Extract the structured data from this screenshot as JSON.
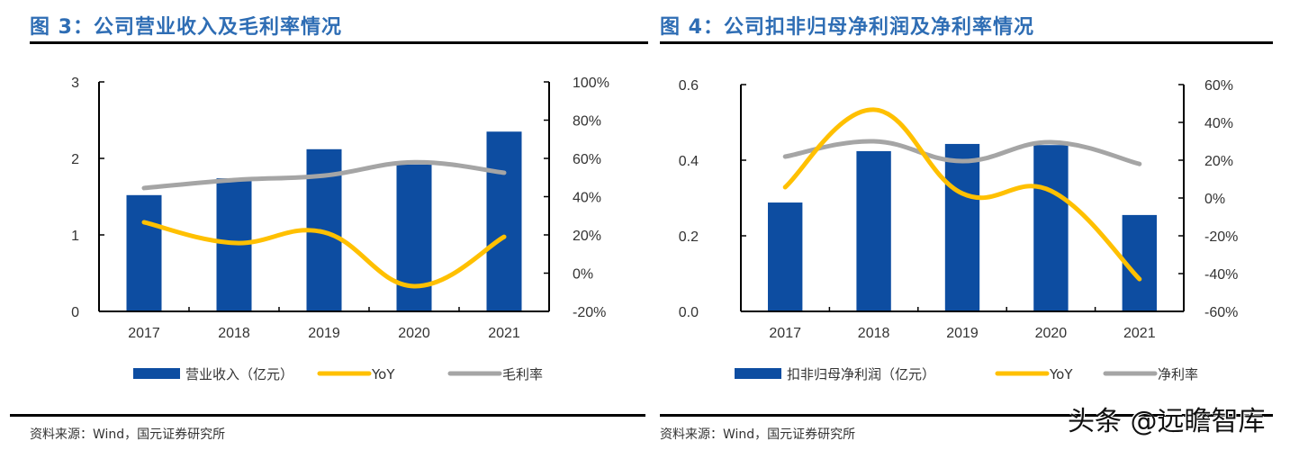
{
  "charts_meta": [
    {
      "title": "图 3：公司营业收入及毛利率情况",
      "source": "资料来源：Wind，国元证券研究所"
    },
    {
      "title": "图 4：公司扣非归母净利润及净利率情况",
      "source": "资料来源：Wind，国元证券研究所"
    }
  ],
  "watermark": "头条 @远瞻智库",
  "colors": {
    "bar": "#0D4DA1",
    "yoy": "#FFC000",
    "margin": "#A5A5A5",
    "title": "#2E6DB4"
  },
  "chart_data": [
    {
      "type": "bar",
      "title": "图 3：公司营业收入及毛利率情况",
      "categories": [
        "2017",
        "2018",
        "2019",
        "2020",
        "2021"
      ],
      "series": [
        {
          "name": "营业收入（亿元）",
          "type": "bar",
          "axis": "left",
          "values": [
            1.52,
            1.74,
            2.12,
            1.92,
            2.35
          ]
        },
        {
          "name": "YoY",
          "type": "line",
          "axis": "right",
          "values": [
            26.6,
            15.8,
            21.4,
            -6.8,
            19.0
          ]
        },
        {
          "name": "毛利率",
          "type": "line",
          "axis": "right",
          "values": [
            44.5,
            48.7,
            51.0,
            58.0,
            52.5
          ]
        }
      ],
      "left_axis": {
        "ylim": [
          0,
          3
        ],
        "ticks": [
          0,
          1,
          2,
          3
        ],
        "tick_labels": [
          "0",
          "1",
          "2",
          "3"
        ]
      },
      "right_axis": {
        "ylim": [
          -20,
          100
        ],
        "ticks": [
          -20,
          0,
          20,
          40,
          60,
          80,
          100
        ],
        "tick_labels": [
          "-20%",
          "0%",
          "20%",
          "40%",
          "60%",
          "80%",
          "100%"
        ]
      },
      "legend": [
        "营业收入（亿元）",
        "YoY",
        "毛利率"
      ],
      "legend_position": "bottom",
      "grid": false,
      "xlabel": "",
      "ylabel": ""
    },
    {
      "type": "bar",
      "title": "图 4：公司扣非归母净利润及净利率情况",
      "categories": [
        "2017",
        "2018",
        "2019",
        "2020",
        "2021"
      ],
      "series": [
        {
          "name": "扣非归母净利润（亿元）",
          "type": "bar",
          "axis": "left",
          "values": [
            0.288,
            0.424,
            0.443,
            0.44,
            0.255
          ]
        },
        {
          "name": "YoY",
          "type": "line",
          "axis": "right",
          "values": [
            5.7,
            46.7,
            2.4,
            3.8,
            -42.9
          ]
        },
        {
          "name": "净利率",
          "type": "line",
          "axis": "right",
          "values": [
            21.9,
            30.0,
            19.5,
            29.5,
            18.0
          ]
        }
      ],
      "left_axis": {
        "ylim": [
          0,
          0.6
        ],
        "ticks": [
          0,
          0.2,
          0.4,
          0.6
        ],
        "tick_labels": [
          "0.0",
          "0.2",
          "0.4",
          "0.6"
        ]
      },
      "right_axis": {
        "ylim": [
          -60,
          60
        ],
        "ticks": [
          -60,
          -40,
          -20,
          0,
          20,
          40,
          60
        ],
        "tick_labels": [
          "-60%",
          "-40%",
          "-20%",
          "0%",
          "20%",
          "40%",
          "60%"
        ]
      },
      "legend": [
        "扣非归母净利润（亿元）",
        "YoY",
        "净利率"
      ],
      "legend_position": "bottom",
      "grid": false,
      "xlabel": "",
      "ylabel": ""
    }
  ]
}
